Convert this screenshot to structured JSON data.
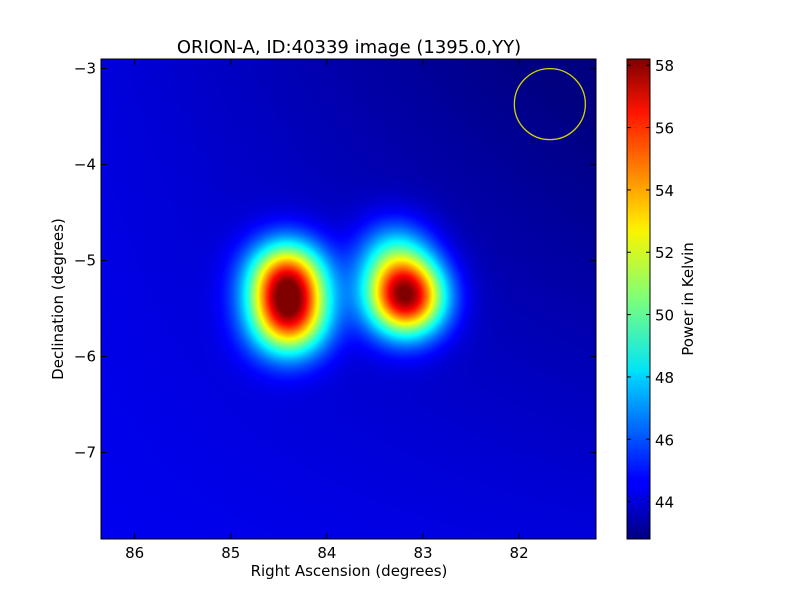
{
  "chart_data": {
    "type": "heatmap",
    "title": "ORION-A, ID:40339 image (1395.0,YY)",
    "xlabel": "Right Ascension (degrees)",
    "ylabel": "Declination (degrees)",
    "xlim": [
      86.35,
      81.2
    ],
    "ylim": [
      -7.9,
      -2.9
    ],
    "x_ticks": [
      86,
      85,
      84,
      83,
      82
    ],
    "x_tick_labels": [
      "86",
      "85",
      "84",
      "83",
      "82"
    ],
    "y_ticks": [
      -3,
      -4,
      -5,
      -6,
      -7
    ],
    "y_tick_labels": [
      "−3",
      "−4",
      "−5",
      "−6",
      "−7"
    ],
    "colorbar": {
      "label": "Power in Kelvin",
      "colormap": "jet",
      "range": [
        42.8,
        58.2
      ],
      "ticks": [
        44,
        46,
        48,
        50,
        52,
        54,
        56,
        58
      ],
      "tick_labels": [
        "44",
        "46",
        "48",
        "50",
        "52",
        "54",
        "56",
        "58"
      ]
    },
    "background_level": 44.5,
    "sources": [
      {
        "ra": 84.42,
        "dec": -5.18,
        "peak": 55.0
      },
      {
        "ra": 84.4,
        "dec": -5.6,
        "peak": 54.5
      },
      {
        "ra": 83.18,
        "dec": -5.38,
        "peak": 58.0
      },
      {
        "ra": 83.3,
        "dec": -4.95,
        "peak": 48.5
      }
    ],
    "beam_circle": {
      "ra": 81.68,
      "dec": -3.37,
      "radius_deg": 0.37,
      "color": "#d4d400"
    }
  }
}
